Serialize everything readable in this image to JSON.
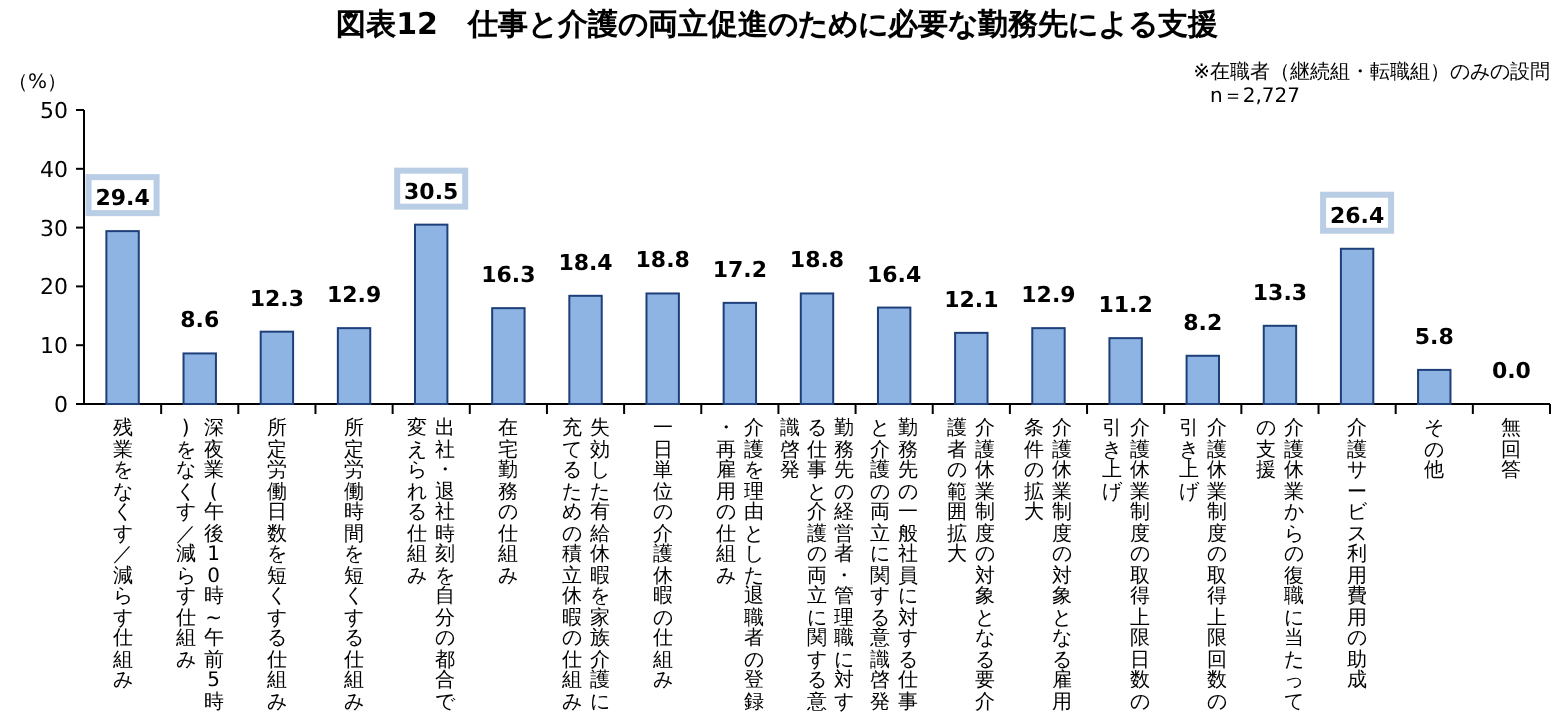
{
  "chart_data": {
    "type": "bar",
    "title": "図表12　仕事と介護の両立促進のために必要な勤務先による支援",
    "ylabel": "（%）",
    "annotations": [
      "※在職者（継続組・転職組）のみの設問",
      "n＝2,727"
    ],
    "categories": [
      "残業をなくす／減らす仕組み",
      "深夜業(午後10時~午前5時)をなくす／減らす仕組み",
      "所定労働日数を短くする仕組み",
      "所定労働時間を短くする仕組み",
      "出社・退社時刻を自分の都合で変えられる仕組み",
      "在宅勤務の仕組み",
      "失効した有給休暇を家族介護に充てるための積立休暇の仕組み",
      "一日単位の介護休暇の仕組み",
      "介護を理由とした退職者の登録・再雇用の仕組み",
      "勤務先の経営者・管理職に対する仕事と介護の両立に関する意識啓発",
      "勤務先の一般社員に対する仕事と介護の両立に関する意識啓発",
      "介護休業制度の対象となる要介護者の範囲拡大",
      "介護休業制度の対象となる雇用条件の拡大",
      "介護休業制度の取得上限日数の引き上げ",
      "介護休業制度の取得上限回数の引き上げ",
      "介護休業からの復職に当たっての支援",
      "介護サービス利用費用の助成",
      "その他",
      "無回答"
    ],
    "values": [
      29.4,
      8.6,
      12.3,
      12.9,
      30.5,
      16.3,
      18.4,
      18.8,
      17.2,
      18.8,
      16.4,
      12.1,
      12.9,
      11.2,
      8.2,
      13.3,
      26.4,
      5.8,
      0.0
    ],
    "value_labels": [
      "29.4",
      "8.6",
      "12.3",
      "12.9",
      "30.5",
      "16.3",
      "18.4",
      "18.8",
      "17.2",
      "18.8",
      "16.4",
      "12.1",
      "12.9",
      "11.2",
      "8.2",
      "13.3",
      "26.4",
      "5.8",
      "0.0"
    ],
    "color": "#8eb4e3",
    "ylim": [
      0,
      50
    ],
    "yticks": [
      0,
      10,
      20,
      30,
      40,
      50
    ],
    "grid": false
  }
}
